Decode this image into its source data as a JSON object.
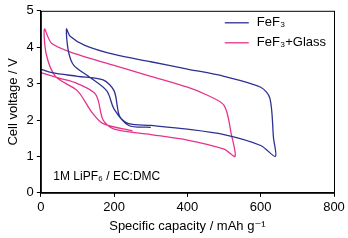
{
  "chart_data": {
    "type": "line",
    "x_label": "Specific capacity / mAh g⁻¹",
    "y_label": "Cell voltage / V",
    "xlim": [
      0,
      800
    ],
    "xticks": [
      0,
      200,
      400,
      600,
      800
    ],
    "ylim": [
      0,
      5
    ],
    "yticks": [
      0,
      1,
      2,
      3,
      4,
      5
    ],
    "grid": false,
    "legend": "upper right",
    "annotations": [
      {
        "text": "1M LiPF₆ / EC:DMC",
        "x": 180,
        "y": 0.45
      }
    ],
    "series": [
      {
        "name": "FeF₃",
        "color": "#2e3192",
        "x": [
          0,
          30,
          100,
          170,
          200,
          215,
          240,
          300,
          400,
          500,
          600,
          640,
          635,
          625,
          600,
          500,
          400,
          300,
          200,
          120,
          80,
          70,
          75,
          90,
          130,
          180,
          200,
          240,
          300
        ],
        "values": [
          3.4,
          3.3,
          3.2,
          3.1,
          2.8,
          2.1,
          1.9,
          1.85,
          1.75,
          1.6,
          1.3,
          1.0,
          1.5,
          2.6,
          2.9,
          3.2,
          3.4,
          3.6,
          3.8,
          4.05,
          4.3,
          4.5,
          3.9,
          3.5,
          3.2,
          2.8,
          2.3,
          1.85,
          1.8
        ]
      },
      {
        "name": "FeF₃+Glass",
        "color": "#e6338a",
        "x": [
          0,
          50,
          100,
          150,
          170,
          200,
          300,
          400,
          500,
          530,
          520,
          500,
          450,
          400,
          300,
          200,
          100,
          30,
          10,
          15,
          40,
          100,
          140,
          170,
          250
        ],
        "values": [
          3.3,
          3.15,
          3.0,
          2.7,
          2.0,
          1.75,
          1.6,
          1.45,
          1.2,
          1.0,
          1.6,
          2.4,
          2.7,
          2.9,
          3.2,
          3.5,
          3.8,
          4.1,
          4.5,
          3.8,
          3.2,
          2.8,
          2.2,
          1.9,
          1.7
        ]
      }
    ]
  }
}
